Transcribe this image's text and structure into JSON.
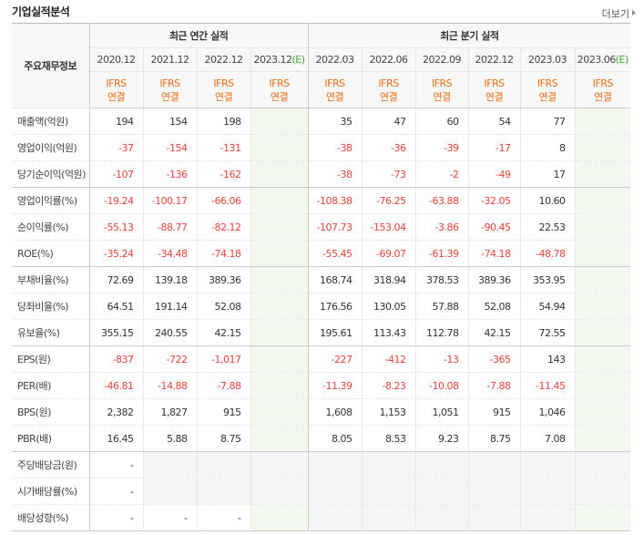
{
  "header": {
    "title": "기업실적분석",
    "more": "더보기"
  },
  "table": {
    "label_header": "주요재무정보",
    "groups": [
      {
        "name": "최근 연간 실적",
        "span": 4
      },
      {
        "name": "최근 분기 실적",
        "span": 6
      }
    ],
    "columns": [
      {
        "period": "2020.12",
        "basis": [
          "IFRS",
          "연결"
        ]
      },
      {
        "period": "2021.12",
        "basis": [
          "IFRS",
          "연결"
        ]
      },
      {
        "period": "2022.12",
        "basis": [
          "IFRS",
          "연결"
        ]
      },
      {
        "period": "2023.12",
        "suffix": "(E)",
        "basis": [
          "IFRS",
          "연결"
        ]
      },
      {
        "period": "2022.03",
        "basis": [
          "IFRS",
          "연결"
        ]
      },
      {
        "period": "2022.06",
        "basis": [
          "IFRS",
          "연결"
        ]
      },
      {
        "period": "2022.09",
        "basis": [
          "IFRS",
          "연결"
        ]
      },
      {
        "period": "2022.12",
        "basis": [
          "IFRS",
          "연결"
        ]
      },
      {
        "period": "2023.03",
        "basis": [
          "IFRS",
          "연결"
        ]
      },
      {
        "period": "2023.06",
        "suffix": "(E)",
        "basis": [
          "IFRS",
          "연결"
        ]
      }
    ],
    "rows": [
      {
        "label": "매출액(억원)",
        "cells": [
          "194",
          "154",
          "198",
          null,
          "35",
          "47",
          "60",
          "54",
          "77",
          null
        ]
      },
      {
        "label": "영업이익(억원)",
        "cells": [
          "-37",
          "-154",
          "-131",
          null,
          "-38",
          "-36",
          "-39",
          "-17",
          "8",
          null
        ]
      },
      {
        "label": "당기순이익(억원)",
        "cells": [
          "-107",
          "-136",
          "-162",
          null,
          "-38",
          "-73",
          "-2",
          "-49",
          "17",
          null
        ]
      },
      {
        "label": "영업이익률(%)",
        "cells": [
          "-19.24",
          "-100.17",
          "-66.06",
          null,
          "-108.38",
          "-76.25",
          "-63.88",
          "-32.05",
          "10.60",
          null
        ]
      },
      {
        "label": "순이익률(%)",
        "cells": [
          "-55.13",
          "-88.77",
          "-82.12",
          null,
          "-107.73",
          "-153.04",
          "-3.86",
          "-90.45",
          "22.53",
          null
        ]
      },
      {
        "label": "ROE(%)",
        "cells": [
          "-35.24",
          "-34.48",
          "-74.18",
          null,
          "-55.45",
          "-69.07",
          "-61.39",
          "-74.18",
          "-48.78",
          null
        ]
      },
      {
        "label": "부채비율(%)",
        "cells": [
          "72.69",
          "139.18",
          "389.36",
          null,
          "168.74",
          "318.94",
          "378.53",
          "389.36",
          "353.95",
          null
        ]
      },
      {
        "label": "당좌비율(%)",
        "cells": [
          "64.51",
          "191.14",
          "52.08",
          null,
          "176.56",
          "130.05",
          "57.88",
          "52.08",
          "54.94",
          null
        ]
      },
      {
        "label": "유보율(%)",
        "cells": [
          "355.15",
          "240.55",
          "42.15",
          null,
          "195.61",
          "113.43",
          "112.78",
          "42.15",
          "72.55",
          null
        ]
      },
      {
        "label": "EPS(원)",
        "cells": [
          "-837",
          "-722",
          "-1,017",
          null,
          "-227",
          "-412",
          "-13",
          "-365",
          "143",
          null
        ]
      },
      {
        "label": "PER(배)",
        "cells": [
          "-46.81",
          "-14.88",
          "-7.88",
          null,
          "-11.39",
          "-8.23",
          "-10.08",
          "-7.88",
          "-11.45",
          null
        ]
      },
      {
        "label": "BPS(원)",
        "cells": [
          "2,382",
          "1,827",
          "915",
          null,
          "1,608",
          "1,153",
          "1,051",
          "915",
          "1,046",
          null
        ]
      },
      {
        "label": "PBR(배)",
        "cells": [
          "16.45",
          "5.88",
          "8.75",
          null,
          "8.05",
          "8.53",
          "9.23",
          "8.75",
          "7.08",
          null
        ]
      },
      {
        "label": "주당배당금(원)",
        "cells": [
          "-",
          null,
          null,
          null,
          null,
          null,
          null,
          null,
          null,
          null
        ]
      },
      {
        "label": "시가배당률(%)",
        "cells": [
          "-",
          null,
          null,
          null,
          null,
          null,
          null,
          null,
          null,
          null
        ]
      },
      {
        "label": "배당성향(%)",
        "cells": [
          "-",
          "-",
          "-",
          null,
          null,
          null,
          null,
          null,
          null,
          null
        ]
      }
    ]
  }
}
